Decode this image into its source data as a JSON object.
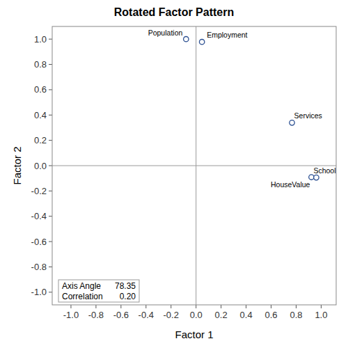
{
  "chart_data": {
    "type": "scatter",
    "title": "Rotated Factor Pattern",
    "x_label": "Factor 1",
    "y_label": "Factor 2",
    "labels": [
      "Population",
      "Employment",
      "Services",
      "HouseValue",
      "School"
    ],
    "x": [
      -0.08,
      0.047,
      0.767,
      0.922,
      0.961
    ],
    "values": [
      1.0,
      0.978,
      0.339,
      -0.091,
      -0.094
    ],
    "color": "#2b4f91",
    "marker": "circle",
    "xlim": [
      -1.15,
      1.12
    ],
    "ylim": [
      -1.1,
      1.1
    ],
    "xticks": [
      {
        "value": -1.0,
        "label": "-1.0"
      },
      -0.8,
      -0.6,
      -0.4,
      -0.2,
      {
        "value": 0,
        "label": "0.0"
      },
      0.2,
      0.4,
      0.6,
      0.8,
      {
        "value": 1.0,
        "label": "1.0"
      }
    ],
    "yticks": [
      {
        "value": -1.0,
        "label": "-1.0"
      },
      -0.8,
      -0.6,
      -0.4,
      -0.2,
      {
        "value": 0,
        "label": "0.0"
      },
      0.2,
      0.4,
      0.6,
      0.8,
      {
        "value": 1.0,
        "label": "1.0"
      }
    ],
    "grid": false,
    "annotations": [
      {
        "text": "Axis Angle",
        "value": 78.35
      },
      {
        "text": "Correlation",
        "value": 0.2,
        "value_label": "0.20"
      }
    ]
  }
}
